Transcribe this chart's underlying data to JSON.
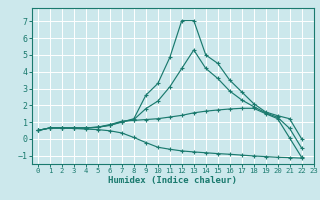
{
  "title": "",
  "xlabel": "Humidex (Indice chaleur)",
  "ylabel": "",
  "background_color": "#cce8ec",
  "grid_color": "#ffffff",
  "line_color": "#1a7a6e",
  "xlim": [
    -0.5,
    23
  ],
  "ylim": [
    -1.5,
    7.8
  ],
  "x_ticks": [
    0,
    1,
    2,
    3,
    4,
    5,
    6,
    7,
    8,
    9,
    10,
    11,
    12,
    13,
    14,
    15,
    16,
    17,
    18,
    19,
    20,
    21,
    22,
    23
  ],
  "y_ticks": [
    -1,
    0,
    1,
    2,
    3,
    4,
    5,
    6,
    7
  ],
  "series": [
    {
      "x": [
        0,
        1,
        2,
        3,
        4,
        5,
        6,
        7,
        8,
        9,
        10,
        11,
        12,
        13,
        14,
        15,
        16,
        17,
        18,
        19,
        20,
        21,
        22
      ],
      "y": [
        0.5,
        0.65,
        0.65,
        0.65,
        0.65,
        0.7,
        0.85,
        1.05,
        1.1,
        1.15,
        1.2,
        1.3,
        1.4,
        1.55,
        1.65,
        1.72,
        1.78,
        1.82,
        1.82,
        1.5,
        1.2,
        0.05,
        -1.1
      ]
    },
    {
      "x": [
        0,
        1,
        2,
        3,
        4,
        5,
        6,
        7,
        8,
        9,
        10,
        11,
        12,
        13,
        14,
        15,
        16,
        17,
        18,
        19,
        20,
        21,
        22
      ],
      "y": [
        0.5,
        0.65,
        0.65,
        0.65,
        0.65,
        0.7,
        0.8,
        1.0,
        1.2,
        2.6,
        3.3,
        4.85,
        7.05,
        7.05,
        5.0,
        4.5,
        3.5,
        2.8,
        2.1,
        1.6,
        1.38,
        1.2,
        0.0
      ]
    },
    {
      "x": [
        0,
        1,
        2,
        3,
        4,
        5,
        6,
        7,
        8,
        9,
        10,
        11,
        12,
        13,
        14,
        15,
        16,
        17,
        18,
        19,
        20,
        21,
        22
      ],
      "y": [
        0.5,
        0.65,
        0.65,
        0.65,
        0.65,
        0.68,
        0.82,
        1.02,
        1.15,
        1.8,
        2.25,
        3.1,
        4.2,
        5.3,
        4.2,
        3.6,
        2.85,
        2.32,
        1.92,
        1.55,
        1.28,
        0.62,
        -0.55
      ]
    },
    {
      "x": [
        0,
        1,
        2,
        3,
        4,
        5,
        6,
        7,
        8,
        9,
        10,
        11,
        12,
        13,
        14,
        15,
        16,
        17,
        18,
        19,
        20,
        21,
        22
      ],
      "y": [
        0.5,
        0.65,
        0.65,
        0.62,
        0.58,
        0.55,
        0.48,
        0.35,
        0.08,
        -0.22,
        -0.5,
        -0.62,
        -0.72,
        -0.78,
        -0.83,
        -0.88,
        -0.92,
        -0.97,
        -1.02,
        -1.06,
        -1.1,
        -1.12,
        -1.15
      ]
    }
  ]
}
